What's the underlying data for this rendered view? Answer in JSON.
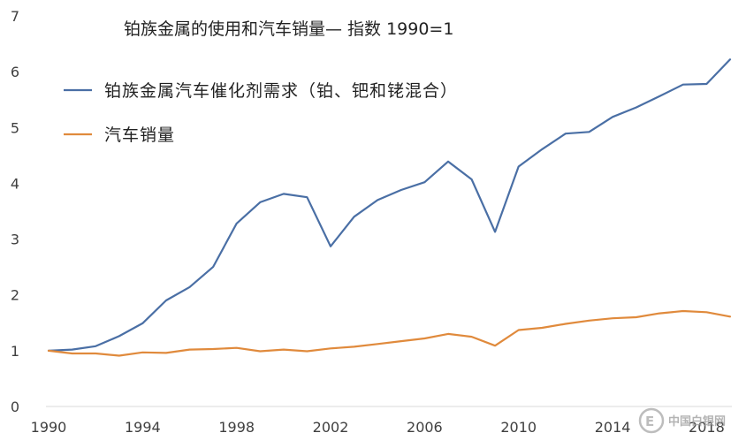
{
  "chart_data": {
    "type": "line",
    "title": "铂族金属的使用和汽车销量— 指数 1990=1",
    "xlabel": "",
    "ylabel": "",
    "xlim": [
      1990,
      2019
    ],
    "ylim": [
      0,
      7
    ],
    "yticks": [
      0,
      1,
      2,
      3,
      4,
      5,
      6,
      7
    ],
    "xticks": [
      1990,
      1994,
      1998,
      2002,
      2006,
      2010,
      2014,
      2018
    ],
    "grid": false,
    "legend_position": "top-left",
    "x": [
      1990,
      1991,
      1992,
      1993,
      1994,
      1995,
      1996,
      1997,
      1998,
      1999,
      2000,
      2001,
      2002,
      2003,
      2004,
      2005,
      2006,
      2007,
      2008,
      2009,
      2010,
      2011,
      2012,
      2013,
      2014,
      2015,
      2016,
      2017,
      2018,
      2019
    ],
    "series": [
      {
        "name": "铂族金属汽车催化剂需求（铂、钯和铑混合）",
        "color": "#4a6fa5",
        "values": [
          1.0,
          1.02,
          1.08,
          1.26,
          1.49,
          1.9,
          2.14,
          2.5,
          3.28,
          3.66,
          3.81,
          3.75,
          2.87,
          3.4,
          3.7,
          3.88,
          4.02,
          4.39,
          4.07,
          3.13,
          4.3,
          4.61,
          4.89,
          4.92,
          5.19,
          5.36,
          5.56,
          5.77,
          5.78,
          6.22
        ]
      },
      {
        "name": "汽车销量",
        "color": "#e08a3c",
        "values": [
          1.0,
          0.95,
          0.95,
          0.91,
          0.97,
          0.96,
          1.02,
          1.03,
          1.05,
          0.99,
          1.02,
          0.99,
          1.04,
          1.07,
          1.12,
          1.17,
          1.22,
          1.3,
          1.25,
          1.09,
          1.37,
          1.41,
          1.48,
          1.54,
          1.58,
          1.6,
          1.67,
          1.71,
          1.69,
          1.61
        ]
      }
    ]
  },
  "watermark": {
    "text": "中国白银网",
    "icon": "e-logo-icon"
  }
}
